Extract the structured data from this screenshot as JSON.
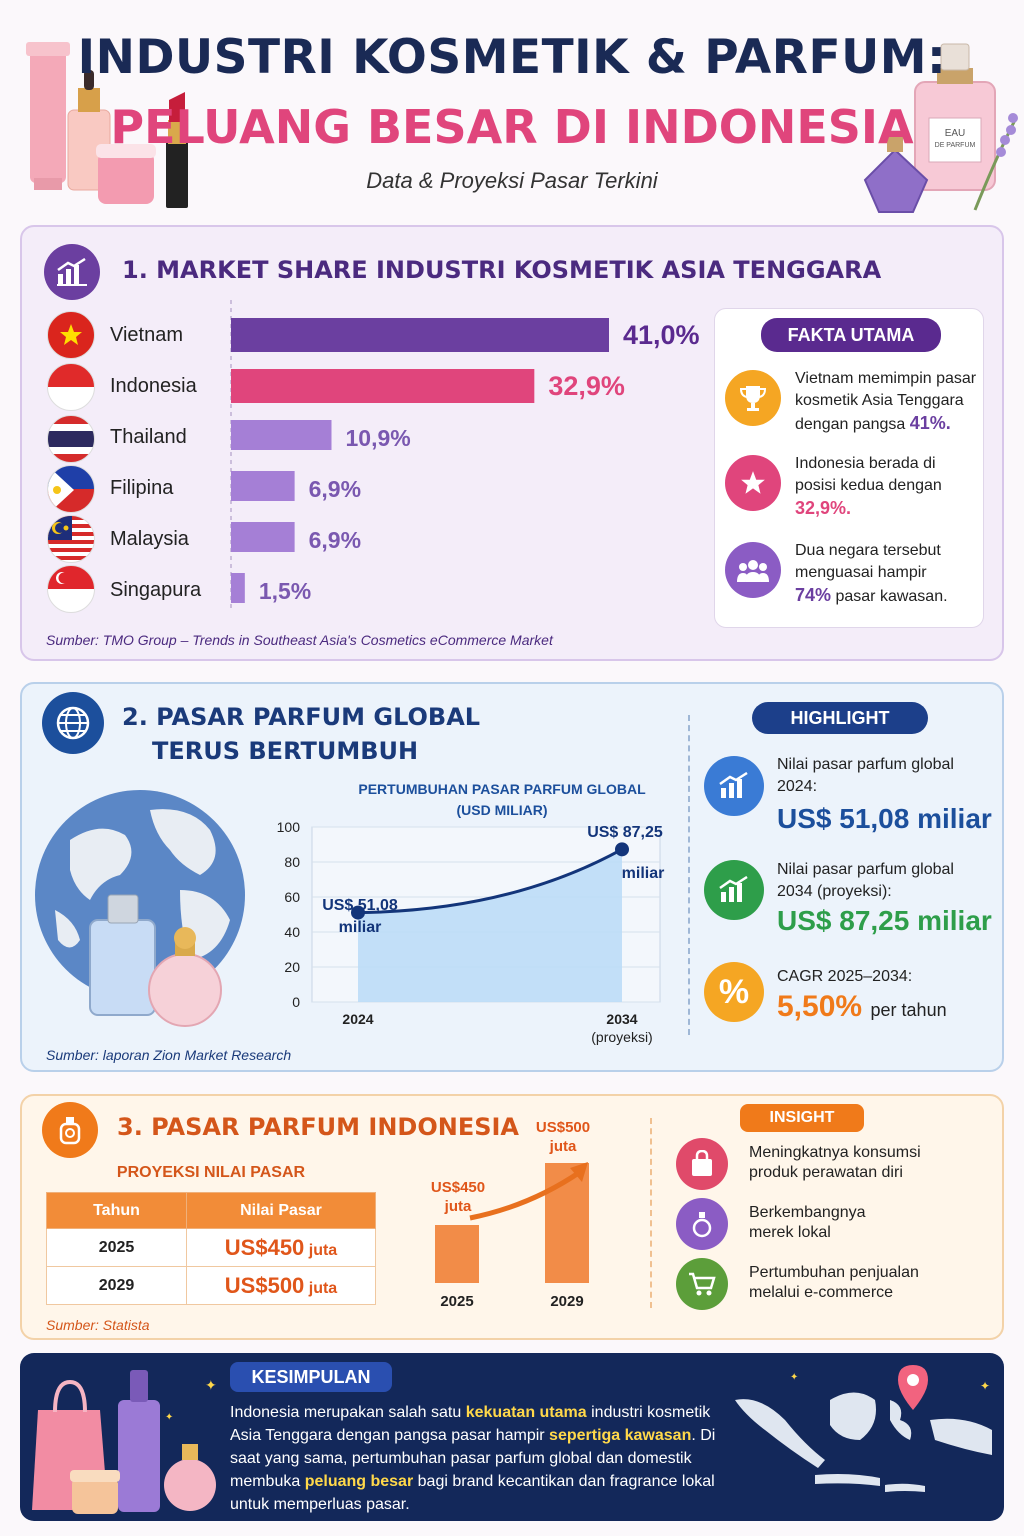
{
  "header": {
    "title_line1": "INDUSTRI KOSMETIK & PARFUM:",
    "title_line2": "PELUANG BESAR DI INDONESIA",
    "subtitle": "Data & Proyeksi Pasar Terkini",
    "bottle_label_1": "EAU",
    "bottle_label_2": "DE PARFUM"
  },
  "section1": {
    "title": "1. MARKET SHARE INDUSTRI KOSMETIK ASIA TENGGARA",
    "source": "Sumber: TMO Group – Trends in Southeast Asia's Cosmetics eCommerce Market",
    "facts_title": "FAKTA UTAMA",
    "facts": [
      {
        "icon": "trophy-icon",
        "text": "Vietnam memimpin pasar kosmetik Asia Tenggara dengan pangsa",
        "highlight": "41%."
      },
      {
        "icon": "star-icon",
        "text": "Indonesia berada di posisi kedua dengan",
        "highlight": "32,9%."
      },
      {
        "icon": "people-icon",
        "text_before": "Dua negara tersebut menguasai hampir",
        "highlight": "74%",
        "text_after": "pasar kawasan."
      }
    ]
  },
  "section2": {
    "title_line1": "2. PASAR PARFUM GLOBAL",
    "title_line2": "TERUS BERTUMBUH",
    "source": "Sumber: laporan Zion Market Research",
    "highlight_title": "HIGHLIGHT",
    "highlights": [
      {
        "label": "Nilai pasar parfum global 2024:",
        "value": "US$ 51,08 miliar",
        "color": "#1c4f9c"
      },
      {
        "label": "Nilai pasar parfum global 2034 (proyeksi):",
        "value": "US$ 87,25 miliar",
        "color": "#2e9e4a"
      },
      {
        "label": "CAGR 2025–2034:",
        "value": "5,50%",
        "suffix": "per tahun",
        "color": "#f07a1a"
      }
    ]
  },
  "section3": {
    "title": "3. PASAR PARFUM INDONESIA",
    "table_title": "PROYEKSI NILAI PASAR",
    "table_headers": [
      "Tahun",
      "Nilai Pasar"
    ],
    "table_rows": [
      {
        "year": "2025",
        "value": "US$450",
        "unit": "juta"
      },
      {
        "year": "2029",
        "value": "US$500",
        "unit": "juta"
      }
    ],
    "source": "Sumber: Statista",
    "insight_title": "INSIGHT",
    "insights": [
      {
        "icon": "shopping-bag-icon",
        "text": "Meningkatnya konsumsi produk perawatan diri",
        "color": "#e04a6a"
      },
      {
        "icon": "perfume-icon",
        "text": "Berkembangnya merek lokal",
        "color": "#8b5cc4"
      },
      {
        "icon": "cart-icon",
        "text": "Pertumbuhan penjualan melalui e-commerce",
        "color": "#5c9e3a"
      }
    ]
  },
  "conclusion": {
    "title": "KESIMPULAN",
    "p1": "Indonesia merupakan salah satu",
    "h1": "kekuatan utama",
    "p2": "industri kosmetik Asia Tenggara dengan pangsa pasar hampir",
    "h2": "sepertiga kawasan",
    "p3": ". Di saat yang sama, pertumbuhan pasar parfum global dan domestik membuka",
    "h3": "peluang besar",
    "p4": "bagi brand kecantikan dan fragrance lokal untuk memperluas pasar."
  },
  "chart_data": [
    {
      "type": "bar",
      "orientation": "horizontal",
      "categories": [
        "Vietnam",
        "Indonesia",
        "Thailand",
        "Filipina",
        "Malaysia",
        "Singapura"
      ],
      "values": [
        41.0,
        32.9,
        10.9,
        6.9,
        6.9,
        1.5
      ],
      "value_labels": [
        "41,0%",
        "32,9%",
        "10,9%",
        "6,9%",
        "6,9%",
        "1,5%"
      ],
      "colors": [
        "#6b3fa0",
        "#e0457c",
        "#a57fd6",
        "#a57fd6",
        "#a57fd6",
        "#a57fd6"
      ]
    },
    {
      "type": "area",
      "title_line1": "PERTUMBUHAN PASAR PARFUM GLOBAL",
      "title_line2": "(USD MILIAR)",
      "x": [
        "2024",
        "2034"
      ],
      "x_sublabels": [
        "",
        "(proyeksi)"
      ],
      "values": [
        51.08,
        87.25
      ],
      "point_labels_line1": [
        "US$ 51,08",
        "US$ 87,25"
      ],
      "point_labels_line2": [
        "miliar",
        "miliar"
      ],
      "ylim": [
        0,
        100
      ],
      "yticks": [
        0,
        20,
        40,
        60,
        80,
        100
      ],
      "grid": true
    },
    {
      "type": "bar",
      "categories": [
        "2025",
        "2029"
      ],
      "values": [
        450,
        500
      ],
      "value_labels_line1": [
        "US$450",
        "US$500"
      ],
      "value_labels_line2": [
        "juta",
        "juta"
      ],
      "color": "#f28c48"
    }
  ]
}
